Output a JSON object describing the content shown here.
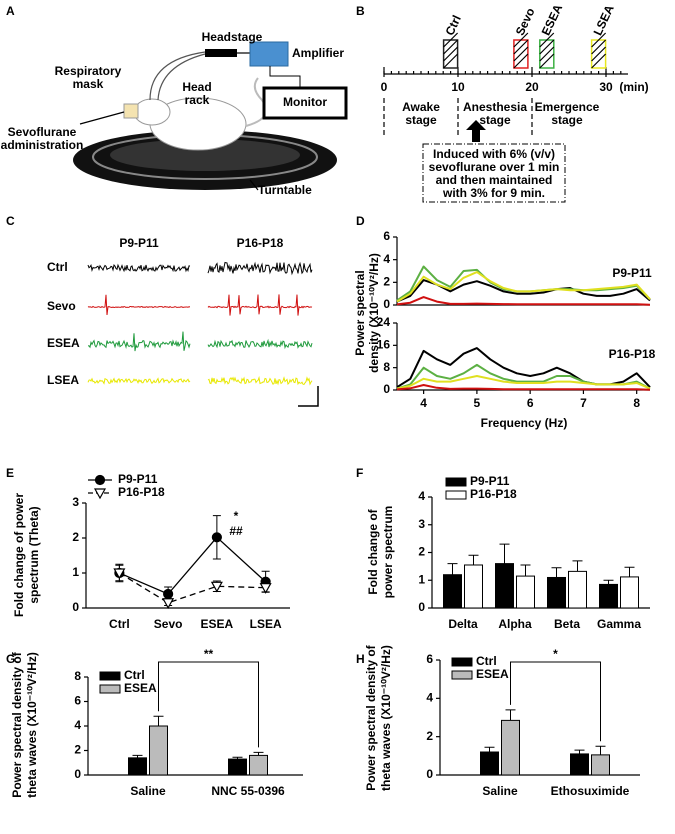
{
  "panel_a": {
    "label": "A",
    "headstage": "Headstage",
    "amplifier": "Amplifier",
    "respiratory_mask": [
      "Respiratory",
      "mask"
    ],
    "head_rack": [
      "Head",
      "rack"
    ],
    "sevoflurane": [
      "Sevoflurane",
      "administration"
    ],
    "monitor": "Monitor",
    "turntable": "Turntable"
  },
  "panel_b": {
    "label": "B",
    "events": [
      {
        "name": "Ctrl",
        "color": "#222222"
      },
      {
        "name": "Sevo",
        "color": "#e02020"
      },
      {
        "name": "ESEA",
        "color": "#3cb043"
      },
      {
        "name": "LSEA",
        "color": "#e8e820"
      }
    ],
    "ticks": [
      0,
      10,
      20,
      30
    ],
    "unit": "(min)",
    "stages": [
      [
        "Awake",
        "stage"
      ],
      [
        "Anesthesia",
        "stage"
      ],
      [
        "Emergence",
        "stage"
      ]
    ],
    "note": [
      "Induced with 6% (v/v)",
      "sevoflurane over 1 min",
      "and then maintained",
      "with 3% for 9 min."
    ]
  },
  "panel_c": {
    "label": "C",
    "columns": [
      "P9-P11",
      "P16-P18"
    ],
    "rows": [
      {
        "name": "Ctrl",
        "color": "#000000"
      },
      {
        "name": "Sevo",
        "color": "#d01010"
      },
      {
        "name": "ESEA",
        "color": "#1f9a3c"
      },
      {
        "name": "LSEA",
        "color": "#e8e800"
      }
    ]
  },
  "chart_data": [
    {
      "type": "line",
      "label": "D",
      "ylabel": [
        "Power spectral",
        "density (X10⁻¹⁰V²/Hz)"
      ],
      "annotation": "P9-P11",
      "x": [
        3.5,
        3.75,
        4,
        4.25,
        4.5,
        4.75,
        5,
        5.25,
        5.5,
        5.75,
        6,
        6.25,
        6.5,
        6.75,
        7,
        7.25,
        7.5,
        7.75,
        8,
        8.25
      ],
      "xlim": [
        3.5,
        8.25
      ],
      "ylim": [
        0,
        6
      ],
      "yticks": [
        0,
        2,
        4,
        6
      ],
      "series": [
        {
          "color": "#000000",
          "values": [
            0.3,
            0.8,
            2.2,
            1.8,
            1.2,
            1.8,
            2.1,
            1.7,
            1.2,
            1.0,
            1.0,
            1.1,
            1.4,
            1.5,
            1.0,
            0.8,
            0.8,
            1.0,
            1.4,
            0.4
          ]
        },
        {
          "color": "#5cb043",
          "values": [
            0.4,
            1.2,
            3.4,
            2.2,
            1.6,
            3.0,
            3.1,
            2.0,
            1.4,
            1.2,
            1.2,
            1.3,
            1.4,
            1.4,
            1.3,
            1.3,
            1.4,
            1.5,
            1.7,
            0.5
          ]
        },
        {
          "color": "#e0e020",
          "values": [
            0.3,
            1.0,
            2.5,
            1.8,
            1.4,
            2.4,
            2.9,
            2.1,
            1.5,
            1.2,
            1.2,
            1.3,
            1.4,
            1.3,
            1.3,
            1.4,
            1.5,
            1.6,
            1.8,
            0.5
          ]
        },
        {
          "color": "#d01010",
          "values": [
            0.05,
            0.2,
            0.7,
            0.3,
            0.1,
            0.1,
            0.12,
            0.1,
            0.08,
            0.06,
            0.06,
            0.06,
            0.06,
            0.06,
            0.06,
            0.06,
            0.06,
            0.06,
            0.06,
            0.03
          ]
        }
      ]
    },
    {
      "type": "line",
      "annotation": "P16-P18",
      "xlabel": "Frequency (Hz)",
      "x": [
        3.5,
        3.75,
        4,
        4.25,
        4.5,
        4.75,
        5,
        5.25,
        5.5,
        5.75,
        6,
        6.25,
        6.5,
        6.75,
        7,
        7.25,
        7.5,
        7.75,
        8,
        8.25
      ],
      "xlim": [
        3.5,
        8.25
      ],
      "xticks": [
        4,
        5,
        6,
        7,
        8
      ],
      "ylim": [
        0,
        24
      ],
      "yticks": [
        0,
        8,
        16,
        24
      ],
      "series": [
        {
          "color": "#000000",
          "values": [
            1,
            4,
            14,
            11,
            9,
            13,
            15,
            11,
            8,
            6,
            5,
            6,
            8,
            6,
            3,
            2,
            2,
            3,
            6,
            1
          ]
        },
        {
          "color": "#5cb043",
          "values": [
            0.5,
            2,
            8,
            5,
            4,
            6,
            9,
            6,
            4,
            3,
            3,
            3,
            5,
            5,
            3,
            2,
            2,
            2,
            3,
            0.5
          ]
        },
        {
          "color": "#e0e020",
          "values": [
            0.5,
            1.5,
            4,
            3,
            3,
            4,
            5,
            4,
            3,
            2.5,
            2.5,
            2.5,
            3,
            3,
            2.5,
            2,
            2,
            2,
            2.5,
            0.5
          ]
        },
        {
          "color": "#d01010",
          "values": [
            0.2,
            0.6,
            1.8,
            0.8,
            0.4,
            0.5,
            0.5,
            0.4,
            0.3,
            0.3,
            0.3,
            0.3,
            0.3,
            0.3,
            0.3,
            0.3,
            0.3,
            0.3,
            0.3,
            0.1
          ]
        }
      ]
    },
    {
      "type": "line",
      "label": "E",
      "ylabel": [
        "Fold change of power",
        "spectrum (Theta)"
      ],
      "categories": [
        "Ctrl",
        "Sevo",
        "ESEA",
        "LSEA"
      ],
      "ylim": [
        0,
        3
      ],
      "yticks": [
        0,
        1,
        2,
        3
      ],
      "series": [
        {
          "name": "P9-P11",
          "color": "#000000",
          "line_style": "solid",
          "marker": "circle",
          "marker_fill": "#000000",
          "values": [
            1.0,
            0.4,
            2.02,
            0.75
          ],
          "errors": [
            0.25,
            0.2,
            0.62,
            0.3
          ]
        },
        {
          "name": "P16-P18",
          "color": "#000000",
          "line_style": "dashed",
          "marker": "triangle-down",
          "marker_fill": "#ffffff",
          "values": [
            1.0,
            0.15,
            0.62,
            0.58
          ],
          "errors": [
            0.22,
            0.08,
            0.15,
            0.12
          ]
        }
      ],
      "annotations": [
        "*",
        "##"
      ]
    },
    {
      "type": "bar",
      "label": "F",
      "ylabel": [
        "Fold change of",
        "power spectrum"
      ],
      "categories": [
        "Delta",
        "Alpha",
        "Beta",
        "Gamma"
      ],
      "ylim": [
        0,
        4
      ],
      "yticks": [
        0,
        1,
        2,
        3,
        4
      ],
      "series": [
        {
          "name": "P9-P11",
          "color": "#000000",
          "values": [
            1.2,
            1.6,
            1.1,
            0.85
          ],
          "errors": [
            0.4,
            0.7,
            0.35,
            0.15
          ]
        },
        {
          "name": "P16-P18",
          "color": "#ffffff",
          "values": [
            1.55,
            1.15,
            1.32,
            1.12
          ],
          "errors": [
            0.35,
            0.4,
            0.38,
            0.35
          ]
        }
      ]
    },
    {
      "type": "bar",
      "label": "G",
      "ylabel": [
        "Power spectral density of",
        "theta waves (X10⁻¹⁰V²/Hz)"
      ],
      "categories": [
        "Saline",
        "NNC 55-0396"
      ],
      "ylim": [
        0,
        8
      ],
      "yticks": [
        0,
        2,
        4,
        6,
        8
      ],
      "series": [
        {
          "name": "Ctrl",
          "color": "#000000",
          "values": [
            1.4,
            1.3
          ],
          "errors": [
            0.2,
            0.15
          ]
        },
        {
          "name": "ESEA",
          "color": "#bbbbbb",
          "values": [
            4.0,
            1.6
          ],
          "errors": [
            0.8,
            0.25
          ]
        }
      ],
      "annotation": "**"
    },
    {
      "type": "bar",
      "label": "H",
      "ylabel": [
        "Power spectral density of",
        "theta waves (X10⁻¹⁰V²/Hz)"
      ],
      "categories": [
        "Saline",
        "Ethosuximide"
      ],
      "ylim": [
        0,
        6
      ],
      "yticks": [
        0,
        2,
        4,
        6
      ],
      "series": [
        {
          "name": "Ctrl",
          "color": "#000000",
          "values": [
            1.2,
            1.1
          ],
          "errors": [
            0.25,
            0.2
          ]
        },
        {
          "name": "ESEA",
          "color": "#bbbbbb",
          "values": [
            2.85,
            1.05
          ],
          "errors": [
            0.55,
            0.45
          ]
        }
      ],
      "annotation": "*"
    }
  ]
}
